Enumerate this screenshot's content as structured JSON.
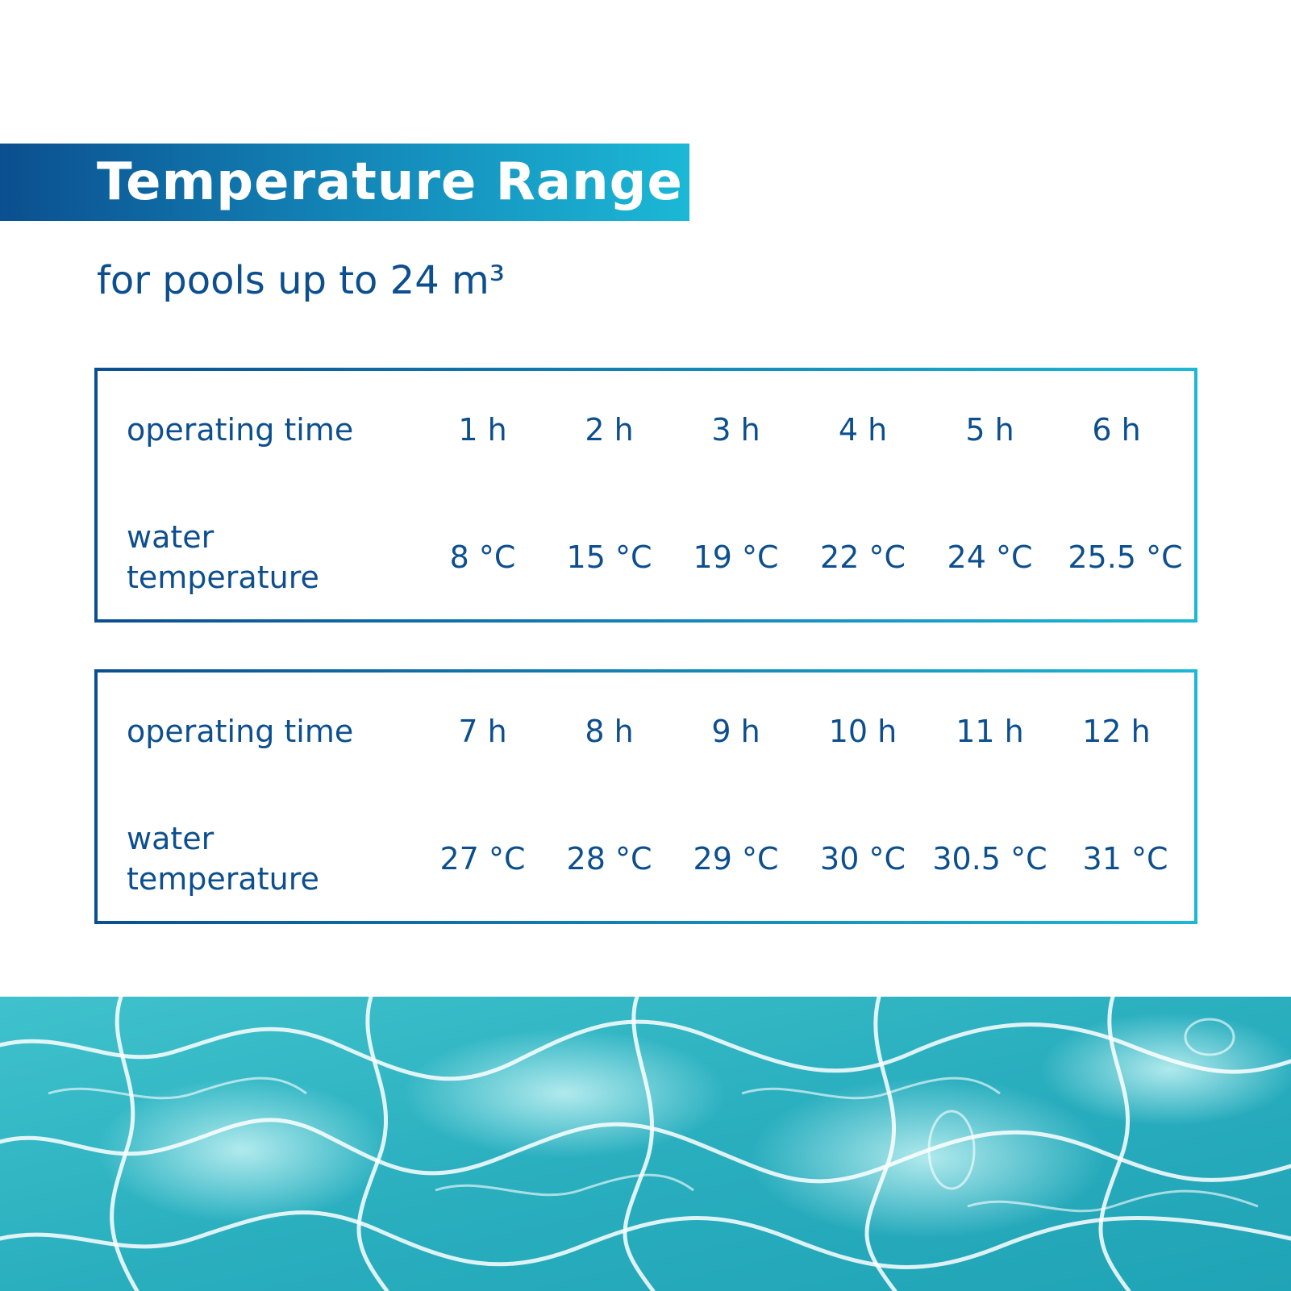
{
  "header": {
    "title": "Temperature Range",
    "subtitle": "for pools up to 24 m³"
  },
  "tables": [
    {
      "row1_label": "operating time",
      "row2_label_line1": "water",
      "row2_label_line2": "temperature",
      "times": [
        "1 h",
        "2 h",
        "3 h",
        "4 h",
        "5 h",
        "6 h"
      ],
      "temps": [
        "8 °C",
        "15 °C",
        "19 °C",
        "22 °C",
        "24 °C",
        "25.5 °C"
      ]
    },
    {
      "row1_label": "operating time",
      "row2_label_line1": "water",
      "row2_label_line2": "temperature",
      "times": [
        "7 h",
        "8 h",
        "9 h",
        "10 h",
        "11 h",
        "12 h"
      ],
      "temps": [
        "27 °C",
        "28 °C",
        "29 °C",
        "30 °C",
        "30.5 °C",
        "31 °C"
      ]
    }
  ],
  "colors": {
    "gradient_start": "#0b4f8f",
    "gradient_end": "#1cb8d6",
    "text": "#0d4f8e",
    "water": "#2bb3c2"
  }
}
